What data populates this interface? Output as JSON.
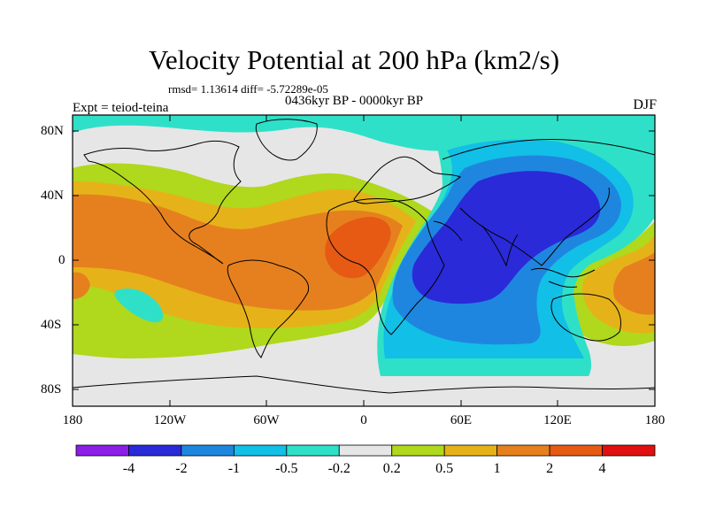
{
  "title": "Velocity Potential at 200 hPa (km2/s)",
  "stats": "rmsd= 1.13614  diff= -5.72289e-05",
  "period": "0436kyr BP - 0000kyr BP",
  "experiment": "Expt = teiod-teina",
  "season": "DJF",
  "map": {
    "lat_labels": [
      "80N",
      "40N",
      "0",
      "40S",
      "80S"
    ],
    "lon_labels": [
      "180",
      "120W",
      "60W",
      "0",
      "60E",
      "120E",
      "180"
    ]
  },
  "colorbar": {
    "colors": [
      "#8c1ee6",
      "#2a2ad9",
      "#1f86e0",
      "#12bfe6",
      "#2fe0c8",
      "#e6e6e6",
      "#b0d81c",
      "#e6b21a",
      "#e6801e",
      "#e65a14",
      "#e01010"
    ],
    "labels": [
      "-4",
      "-2",
      "-1",
      "-0.5",
      "-0.2",
      "0.2",
      "0.5",
      "1",
      "2",
      "4"
    ]
  },
  "field_colors": {
    "neutral": "#e6e6e6",
    "cyan": "#2fe0c8",
    "lightblue": "#12bfe6",
    "blue": "#1f86e0",
    "darkblue": "#2a2ad9",
    "lime": "#b0d81c",
    "yellow": "#e6b21a",
    "orange": "#e6801e",
    "redorange": "#e65a14"
  }
}
